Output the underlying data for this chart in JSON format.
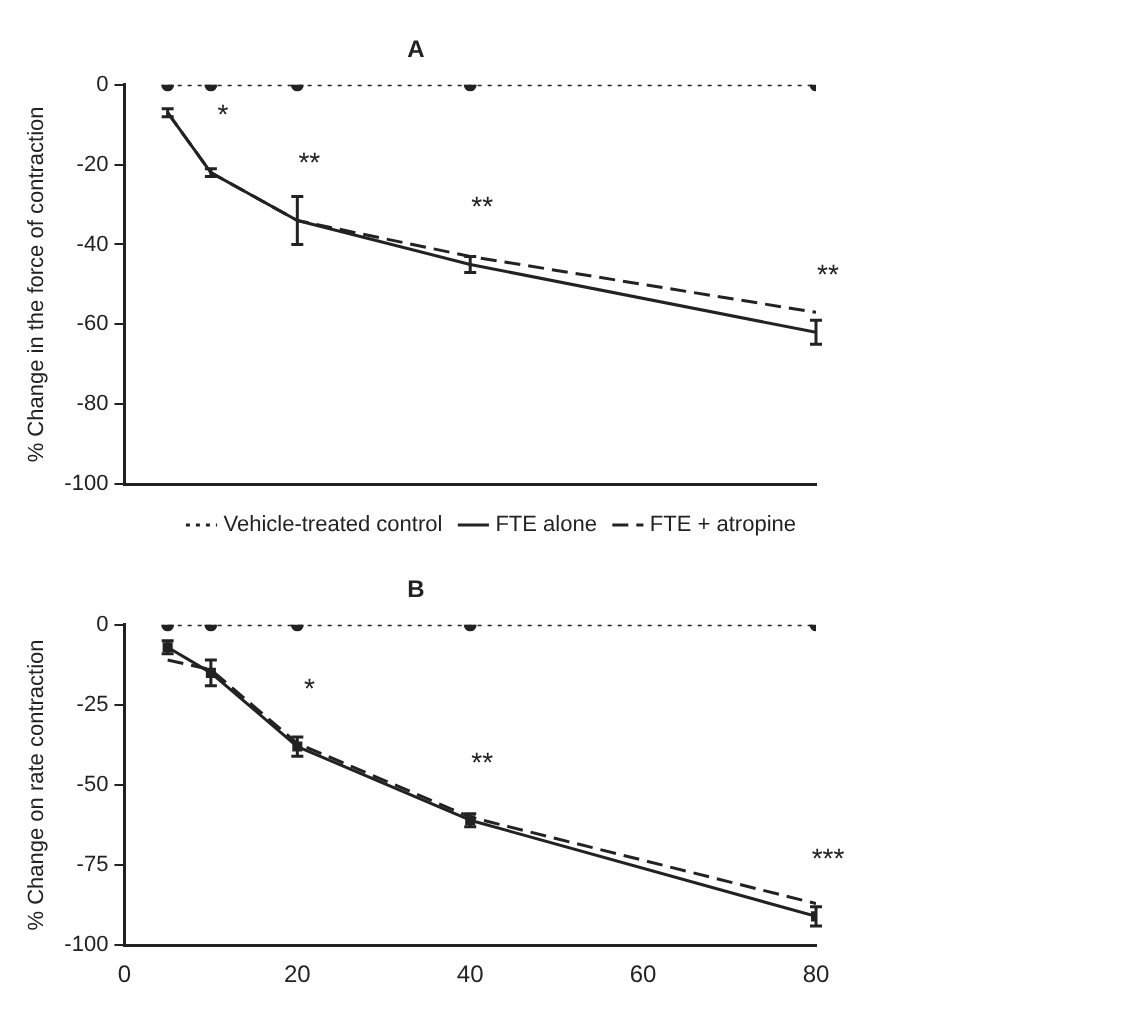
{
  "chart_data": [
    {
      "type": "line",
      "title": "A",
      "ylabel": "% Change in the force of contraction",
      "x": [
        5,
        10,
        20,
        40,
        80
      ],
      "xlim": [
        0,
        80
      ],
      "xticks": [
        0,
        20,
        40,
        60,
        80
      ],
      "ylim": [
        -100,
        0
      ],
      "yticks": [
        0,
        -20,
        -40,
        -60,
        -80,
        -100
      ],
      "tick_labels": "y",
      "grid": false,
      "legend": "bottom right",
      "series": [
        {
          "name": "Vehicle-treated control",
          "color": "#222222",
          "values": [
            0,
            0,
            0,
            0,
            0
          ],
          "marker": "circle",
          "line_style": "dotted"
        },
        {
          "name": "FTE alone",
          "color": "#222222",
          "values": [
            -7,
            -22,
            -34,
            -45,
            -62
          ],
          "errors": [
            1,
            1,
            6,
            2,
            3
          ],
          "line_style": "solid"
        },
        {
          "name": "FTE + atropine",
          "color": "#222222",
          "values": [
            -7,
            -22,
            -34,
            -43,
            -57
          ],
          "line_style": "dashed"
        }
      ],
      "annotations": [
        {
          "text": "*",
          "x": 10,
          "y": -22
        },
        {
          "text": "**",
          "x": 20,
          "y": -34
        },
        {
          "text": "**",
          "x": 40,
          "y": -45
        },
        {
          "text": "**",
          "x": 80,
          "y": -62
        }
      ]
    },
    {
      "type": "line",
      "title": "B",
      "ylabel": "% Change on rate contraction",
      "x": [
        5,
        10,
        20,
        40,
        80
      ],
      "xlim": [
        0,
        80
      ],
      "xticks": [
        0,
        20,
        40,
        60,
        80
      ],
      "ylim": [
        -100,
        0
      ],
      "yticks": [
        0,
        -25,
        -50,
        -75,
        -100
      ],
      "grid": false,
      "series": [
        {
          "color": "#222222",
          "values": [
            0,
            0,
            0,
            0,
            0
          ],
          "marker": "circle",
          "line_style": "dotted"
        },
        {
          "color": "#222222",
          "values": [
            -7,
            -15,
            -38,
            -61,
            -91
          ],
          "errors": [
            2,
            4,
            3,
            2,
            3
          ],
          "marker": "square",
          "line_style": "solid"
        },
        {
          "color": "#222222",
          "values": [
            -11,
            -14,
            -37,
            -60,
            -87
          ],
          "line_style": "dashed"
        }
      ],
      "annotations": [
        {
          "text": "*",
          "x": 20,
          "y": -38
        },
        {
          "text": "**",
          "x": 40,
          "y": -61
        },
        {
          "text": "***",
          "x": 80,
          "y": -91
        }
      ]
    }
  ]
}
